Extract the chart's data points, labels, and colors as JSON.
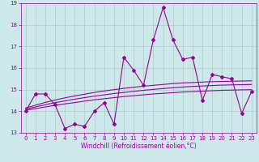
{
  "xlabel": "Windchill (Refroidissement éolien,°C)",
  "x": [
    0,
    1,
    2,
    3,
    4,
    5,
    6,
    7,
    8,
    9,
    10,
    11,
    12,
    13,
    14,
    15,
    16,
    17,
    18,
    19,
    20,
    21,
    22,
    23
  ],
  "y_main": [
    14.0,
    14.8,
    14.8,
    14.3,
    13.2,
    13.4,
    13.3,
    14.0,
    14.4,
    13.4,
    16.5,
    15.9,
    15.2,
    17.3,
    18.8,
    17.3,
    16.4,
    16.5,
    14.5,
    15.7,
    15.6,
    15.5,
    13.9,
    14.9
  ],
  "y_trend1": [
    14.05,
    14.12,
    14.2,
    14.27,
    14.34,
    14.4,
    14.47,
    14.53,
    14.58,
    14.63,
    14.68,
    14.72,
    14.76,
    14.8,
    14.83,
    14.86,
    14.89,
    14.91,
    14.93,
    14.95,
    14.97,
    14.98,
    14.99,
    15.0
  ],
  "y_trend2": [
    14.1,
    14.2,
    14.3,
    14.4,
    14.48,
    14.56,
    14.63,
    14.7,
    14.76,
    14.82,
    14.87,
    14.92,
    14.97,
    15.01,
    15.05,
    15.09,
    15.12,
    15.15,
    15.17,
    15.19,
    15.21,
    15.22,
    15.23,
    15.24
  ],
  "y_trend3": [
    14.15,
    14.28,
    14.41,
    14.52,
    14.62,
    14.71,
    14.79,
    14.87,
    14.94,
    15.0,
    15.06,
    15.11,
    15.16,
    15.2,
    15.24,
    15.28,
    15.31,
    15.33,
    15.35,
    15.37,
    15.38,
    15.39,
    15.4,
    15.41
  ],
  "line_color": "#990099",
  "bg_color": "#cce8e8",
  "grid_color": "#b0c8c8",
  "ylim": [
    13.0,
    19.0
  ],
  "yticks": [
    13,
    14,
    15,
    16,
    17,
    18,
    19
  ],
  "xticks": [
    0,
    1,
    2,
    3,
    4,
    5,
    6,
    7,
    8,
    9,
    10,
    11,
    12,
    13,
    14,
    15,
    16,
    17,
    18,
    19,
    20,
    21,
    22,
    23
  ],
  "marker": "D",
  "markersize": 2.0,
  "linewidth": 0.8,
  "fontsize_label": 5.5,
  "fontsize_tick": 5.0
}
